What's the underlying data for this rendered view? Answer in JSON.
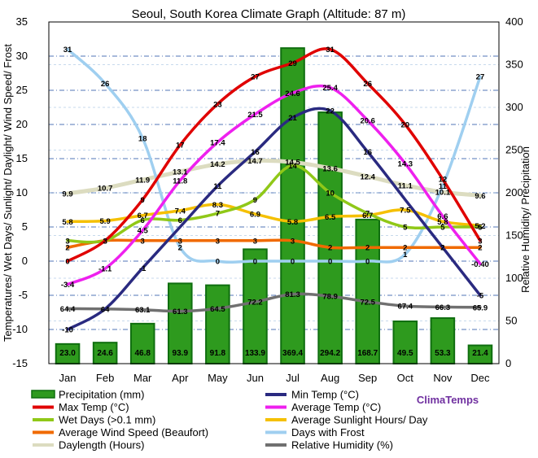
{
  "chart_data": {
    "type": "bar",
    "title": "Seoul, South Korea Climate Graph (Altitude: 87 m)",
    "ylabel_left": "Temperatures/ Wet Days/ Sunlight/ Daylight/ Wind Speed/ Frost",
    "ylabel_right": "Relative Humidity/ Precipitation",
    "ylim_left": [
      -15,
      35
    ],
    "ylim_right": [
      0,
      400
    ],
    "yticks_left": [
      -15,
      -10,
      -5,
      0,
      5,
      10,
      15,
      20,
      25,
      30,
      35
    ],
    "yticks_right": [
      0,
      50,
      100,
      150,
      200,
      250,
      300,
      350,
      400
    ],
    "grid": true,
    "legend_position": "bottom",
    "brand": "ClimaTemps",
    "categories": [
      "Jan",
      "Feb",
      "Mar",
      "Apr",
      "May",
      "Jun",
      "Jul",
      "Aug",
      "Sep",
      "Oct",
      "Nov",
      "Dec"
    ],
    "series": [
      {
        "name": "Precipitation (mm)",
        "kind": "bar",
        "axis": "right",
        "color": "#2e9a1e",
        "values": [
          23.0,
          24.6,
          46.8,
          93.9,
          91.8,
          133.9,
          369.4,
          294.2,
          168.7,
          49.5,
          53.3,
          21.4
        ],
        "labels": [
          "23.0",
          "24.6",
          "46.8",
          "93.9",
          "91.8",
          "133.9",
          "369.4",
          "294.2",
          "168.7",
          "49.5",
          "53.3",
          "21.4"
        ]
      },
      {
        "name": "Min Temp (°C)",
        "kind": "line",
        "axis": "left",
        "color": "#2a2a80",
        "values": [
          -10,
          -7,
          -1,
          5,
          11,
          16,
          21,
          22,
          16,
          9,
          2,
          -5
        ],
        "labels": [
          "-10",
          "",
          "-1",
          "",
          "11",
          "16",
          "21",
          "22",
          "16",
          "",
          "2",
          "-5"
        ]
      },
      {
        "name": "Max Temp (°C)",
        "kind": "line",
        "axis": "left",
        "color": "#e00000",
        "values": [
          0,
          3,
          9,
          17,
          23,
          27,
          29,
          31,
          26,
          20,
          12,
          3
        ],
        "labels": [
          "0",
          "3",
          "9",
          "17",
          "23",
          "27",
          "29",
          "31",
          "26",
          "20",
          "12",
          "3"
        ]
      },
      {
        "name": "Average Temp (°C)",
        "kind": "line",
        "axis": "left",
        "color": "#ee20ee",
        "values": [
          -3.4,
          -1.1,
          4.5,
          11.8,
          17.4,
          21.5,
          24.6,
          25.4,
          20.6,
          14.3,
          6.6,
          -0.4
        ],
        "labels": [
          "-3.4",
          "-1.1",
          "4.5",
          "11.8",
          "17.4",
          "21.5",
          "24.6",
          "25.4",
          "20.6",
          "14.3",
          "6.6",
          "-0.40"
        ]
      },
      {
        "name": "Wet Days (>0.1 mm)",
        "kind": "line",
        "axis": "left",
        "color": "#90c818",
        "values": [
          3,
          3,
          6,
          6,
          7,
          9,
          14,
          10,
          7,
          5,
          5,
          5
        ],
        "labels": [
          "3",
          "3",
          "6",
          "6",
          "7",
          "9",
          "14",
          "10",
          "7",
          "5",
          "5",
          "5"
        ]
      },
      {
        "name": "Average Sunlight Hours/ Day",
        "kind": "line",
        "axis": "left",
        "color": "#f5c000",
        "values": [
          5.8,
          5.9,
          6.7,
          7.4,
          8.3,
          6.9,
          5.8,
          6.5,
          6.7,
          7.5,
          5.8,
          5.2
        ],
        "labels": [
          "5.8",
          "5.9",
          "6.7",
          "7.4",
          "8.3",
          "6.9",
          "5.8",
          "6.5",
          "6.7",
          "7.5",
          "5.8",
          "5.2"
        ]
      },
      {
        "name": "Average Wind Speed (Beaufort)",
        "kind": "line",
        "axis": "left",
        "color": "#f06a00",
        "values": [
          2,
          3,
          3,
          3,
          3,
          3,
          3,
          2,
          2,
          2,
          2,
          2
        ],
        "labels": [
          "2",
          "3",
          "3",
          "3",
          "3",
          "3",
          "3",
          "2",
          "2",
          "2",
          "2",
          "2"
        ]
      },
      {
        "name": "Days with Frost",
        "kind": "line",
        "axis": "left",
        "color": "#9fcff0",
        "values": [
          31,
          26,
          18,
          2,
          0,
          0,
          0,
          0,
          0,
          1,
          11,
          27
        ],
        "labels": [
          "31",
          "26",
          "18",
          "2",
          "0",
          "0",
          "0",
          "0",
          "0",
          "1",
          "11",
          "27"
        ]
      },
      {
        "name": "Daylength (Hours)",
        "kind": "line",
        "axis": "left",
        "color": "#dcdcc0",
        "values": [
          9.9,
          10.7,
          11.9,
          13.1,
          14.2,
          14.7,
          14.5,
          13.6,
          12.4,
          11.1,
          10.1,
          9.6
        ],
        "labels": [
          "9.9",
          "10.7",
          "11.9",
          "13.1",
          "14.2",
          "14.7",
          "14.5",
          "13.6",
          "12.4",
          "11.1",
          "10.1",
          "9.6"
        ]
      },
      {
        "name": "Relative Humidity (%)",
        "kind": "line",
        "axis": "right",
        "color": "#707070",
        "values": [
          64.4,
          64,
          63.1,
          61.3,
          64.5,
          72.2,
          81.3,
          78.9,
          72.5,
          67.4,
          66.3,
          65.9
        ],
        "labels": [
          "64.4",
          "64",
          "63.1",
          "61.3",
          "64.5",
          "72.2",
          "81.3",
          "78.9",
          "72.5",
          "67.4",
          "66.3",
          "65.9"
        ]
      }
    ]
  }
}
